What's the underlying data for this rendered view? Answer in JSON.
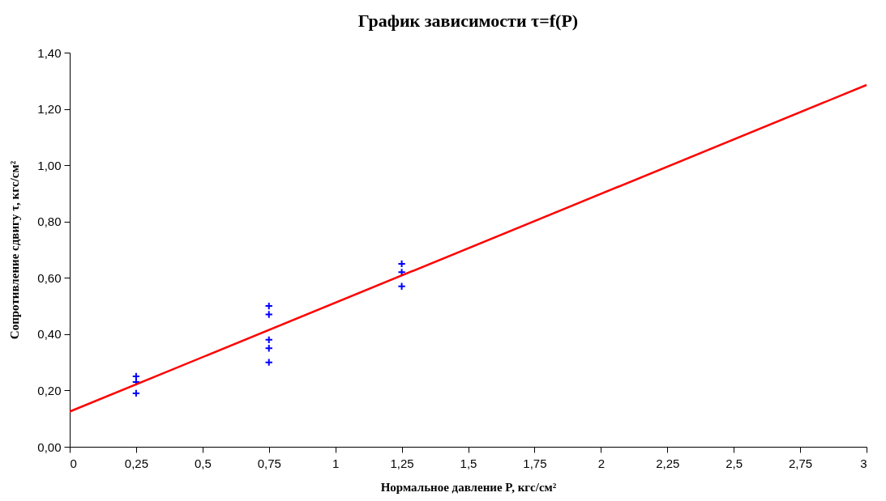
{
  "chart_data": {
    "type": "scatter",
    "title": "График зависимости τ=f(P)",
    "xlabel": "Нормальное давление P, кгс/см²",
    "ylabel": "Сопротивление сдвигу τ, кгс/см²",
    "series": [
      {
        "type": "scatter",
        "color": "#0000ff",
        "marker": "cross",
        "x": [
          0.25,
          0.25,
          0.25,
          0.75,
          0.75,
          0.75,
          0.75,
          0.75,
          1.25,
          1.25,
          1.25
        ],
        "values": [
          0.25,
          0.23,
          0.19,
          0.5,
          0.47,
          0.38,
          0.35,
          0.3,
          0.65,
          0.62,
          0.57
        ]
      },
      {
        "type": "line",
        "color": "#ff0000",
        "marker": "none",
        "line_style": "solid",
        "x": [
          0,
          3
        ],
        "values": [
          0.125,
          1.285
        ]
      }
    ],
    "xlim": [
      0,
      3
    ],
    "ylim": [
      0,
      1.4
    ],
    "xticks": [
      0,
      {
        "value": 0.25,
        "label": "0,25"
      },
      {
        "value": 0.5,
        "label": "0,5"
      },
      {
        "value": 0.75,
        "label": "0,75"
      },
      1,
      {
        "value": 1.25,
        "label": "1,25"
      },
      {
        "value": 1.5,
        "label": "1,5"
      },
      {
        "value": 1.75,
        "label": "1,75"
      },
      2,
      {
        "value": 2.25,
        "label": "2,25"
      },
      {
        "value": 2.5,
        "label": "2,5"
      },
      {
        "value": 2.75,
        "label": "2,75"
      },
      3
    ],
    "yticks": [
      {
        "value": 0,
        "label": "0,00"
      },
      {
        "value": 0.2,
        "label": "0,20"
      },
      {
        "value": 0.4,
        "label": "0,40"
      },
      {
        "value": 0.6,
        "label": "0,60"
      },
      {
        "value": 0.8,
        "label": "0,80"
      },
      {
        "value": 1.0,
        "label": "1,00"
      },
      {
        "value": 1.2,
        "label": "1,20"
      },
      {
        "value": 1.4,
        "label": "1,40"
      }
    ],
    "grid": false,
    "legend": false
  }
}
